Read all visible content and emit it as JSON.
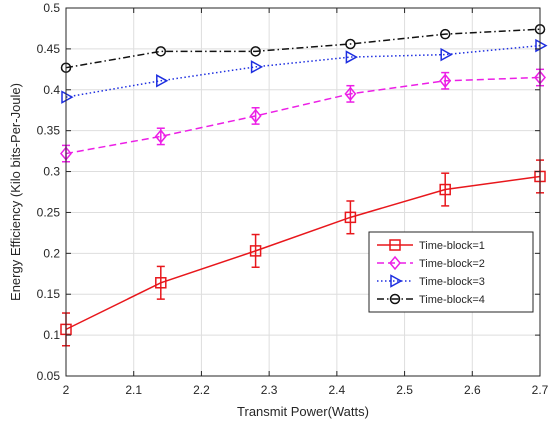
{
  "chart_data": {
    "type": "line",
    "title": "",
    "xlabel": "Transmit Power(Watts)",
    "ylabel": "Energy Efficiency (Kilo bits-Per-Joule)",
    "xlim": [
      2,
      2.7
    ],
    "ylim": [
      0.05,
      0.5
    ],
    "xticks": [
      2,
      2.1,
      2.2,
      2.3,
      2.4,
      2.5,
      2.6,
      2.7
    ],
    "yticks": [
      0.05,
      0.1,
      0.15,
      0.2,
      0.25,
      0.3,
      0.35,
      0.4,
      0.45,
      0.5
    ],
    "xtick_labels": [
      "2",
      "2.1",
      "2.2",
      "2.3",
      "2.4",
      "2.5",
      "2.6",
      "2.7"
    ],
    "ytick_labels": [
      "0.05",
      "0.1",
      "0.15",
      "0.2",
      "0.25",
      "0.3",
      "0.35",
      "0.4",
      "0.45",
      "0.5"
    ],
    "grid": true,
    "legend_position": "right",
    "x": [
      2,
      2.14,
      2.28,
      2.42,
      2.56,
      2.7
    ],
    "series": [
      {
        "name": "Time-block=1",
        "color": "#e8171c",
        "marker": "square",
        "dash": "solid",
        "values": [
          0.107,
          0.164,
          0.203,
          0.244,
          0.278,
          0.294
        ],
        "error": [
          0.02,
          0.02,
          0.02,
          0.02,
          0.02,
          0.02
        ]
      },
      {
        "name": "Time-block=2",
        "color": "#ec1fe6",
        "marker": "diamond",
        "dash": "dashed",
        "values": [
          0.322,
          0.343,
          0.368,
          0.395,
          0.411,
          0.415
        ],
        "error": [
          0.01,
          0.01,
          0.01,
          0.01,
          0.01,
          0.01
        ]
      },
      {
        "name": "Time-block=3",
        "color": "#1e2fe0",
        "marker": "triangle-right",
        "dash": "dotted",
        "values": [
          0.391,
          0.411,
          0.428,
          0.44,
          0.443,
          0.454
        ],
        "error": []
      },
      {
        "name": "Time-block=4",
        "color": "#111111",
        "marker": "circle",
        "dash": "dashdot",
        "values": [
          0.427,
          0.447,
          0.447,
          0.456,
          0.468,
          0.474
        ],
        "error": []
      }
    ]
  }
}
